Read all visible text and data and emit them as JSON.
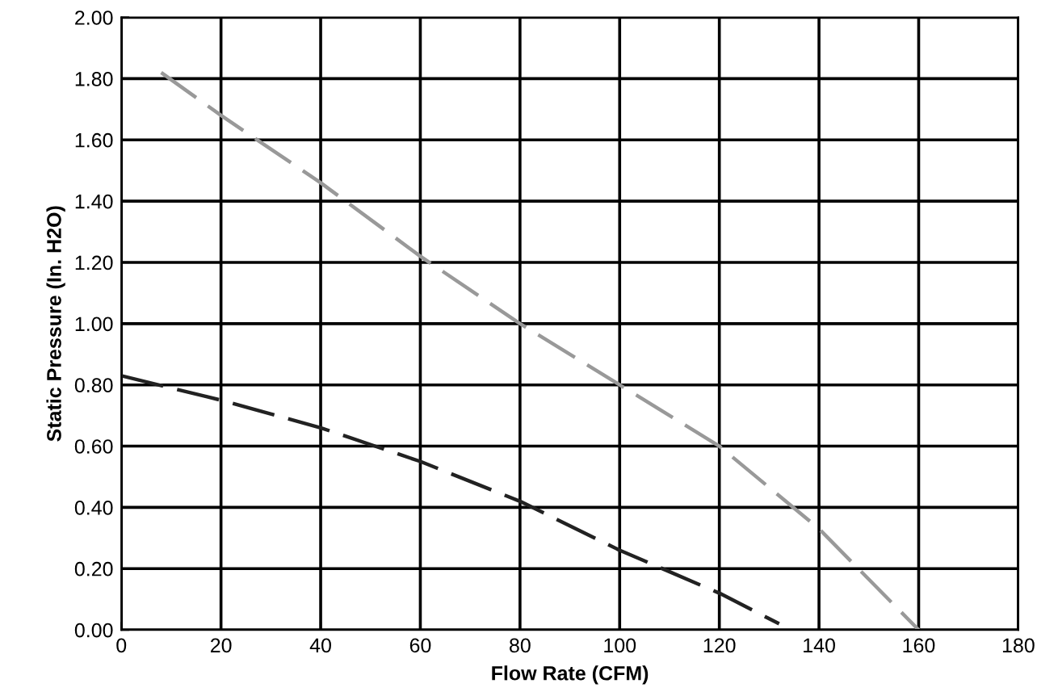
{
  "chart_data": {
    "type": "line",
    "xlabel": "Flow Rate (CFM)",
    "ylabel": "Static Pressure (In. H2O)",
    "xlim": [
      0,
      180
    ],
    "xticks": [
      0,
      20,
      40,
      60,
      80,
      100,
      120,
      140,
      160,
      180
    ],
    "ylim": [
      0,
      2
    ],
    "yticks": [
      {
        "value": 0,
        "label": "0.00"
      },
      {
        "value": 0.2,
        "label": "0.20"
      },
      {
        "value": 0.4,
        "label": "0.40"
      },
      {
        "value": 0.6,
        "label": "0.60"
      },
      {
        "value": 0.8,
        "label": "0.80"
      },
      {
        "value": 1.0,
        "label": "1.00"
      },
      {
        "value": 1.2,
        "label": "1.20"
      },
      {
        "value": 1.4,
        "label": "1.40"
      },
      {
        "value": 1.6,
        "label": "1.60"
      },
      {
        "value": 1.8,
        "label": "1.80"
      },
      {
        "value": 2.0,
        "label": "2.00"
      }
    ],
    "grid": true,
    "line_style": "dashed",
    "series": [
      {
        "color": "#999999",
        "x": [
          8,
          20,
          40,
          60,
          80,
          100,
          120,
          140,
          160
        ],
        "values": [
          1.82,
          1.68,
          1.46,
          1.22,
          1.0,
          0.8,
          0.6,
          0.33,
          0.0
        ]
      },
      {
        "color": "#222222",
        "x": [
          0,
          20,
          40,
          60,
          80,
          100,
          120,
          132
        ],
        "values": [
          0.83,
          0.75,
          0.66,
          0.55,
          0.42,
          0.26,
          0.12,
          0.02
        ]
      }
    ]
  }
}
